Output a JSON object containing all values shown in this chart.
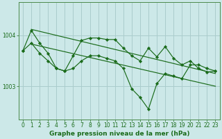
{
  "background_color": "#cce8e8",
  "plot_bg_color": "#cce8e8",
  "grid_color": "#aacccc",
  "line_color": "#1a6b1a",
  "marker_color": "#1a6b1a",
  "xlabel": "Graphe pression niveau de la mer (hPa)",
  "xlabel_fontsize": 6.5,
  "xlim": [
    -0.5,
    23.5
  ],
  "ylim": [
    1002.35,
    1004.65
  ],
  "yticks": [
    1003,
    1004
  ],
  "xticks": [
    0,
    1,
    2,
    3,
    4,
    5,
    6,
    7,
    8,
    9,
    10,
    11,
    12,
    13,
    14,
    15,
    16,
    17,
    18,
    19,
    20,
    21,
    22,
    23
  ],
  "series_deep_x": [
    0,
    1,
    2,
    3,
    4,
    5,
    6,
    7,
    8,
    9,
    10,
    11,
    12,
    13,
    14,
    15,
    16,
    17,
    18,
    19,
    20,
    21,
    22,
    23
  ],
  "series_deep_y": [
    1003.7,
    1003.85,
    1003.65,
    1003.5,
    1003.35,
    1003.3,
    1003.35,
    1003.5,
    1003.6,
    1003.6,
    1003.55,
    1003.5,
    1003.35,
    1002.95,
    1002.78,
    1002.55,
    1003.05,
    1003.25,
    1003.2,
    1003.15,
    1003.42,
    1003.42,
    1003.35,
    1003.3
  ],
  "series_upper_x": [
    0,
    1,
    2,
    3,
    4,
    5,
    6,
    7,
    8,
    9,
    10,
    11,
    12,
    13,
    14,
    15,
    16,
    17,
    18,
    19,
    20,
    21,
    22,
    23
  ],
  "series_upper_y": [
    1003.7,
    1004.1,
    1003.85,
    1003.65,
    1003.35,
    1003.3,
    1003.6,
    1003.9,
    1003.95,
    1003.95,
    1003.92,
    1003.92,
    1003.75,
    1003.6,
    1003.5,
    1003.75,
    1003.58,
    1003.78,
    1003.55,
    1003.42,
    1003.5,
    1003.35,
    1003.28,
    1003.3
  ],
  "trend1_x": [
    1,
    23
  ],
  "trend1_y": [
    1004.12,
    1003.25
  ],
  "trend2_x": [
    1,
    23
  ],
  "trend2_y": [
    1003.83,
    1003.0
  ],
  "tick_fontsize": 5.5,
  "linewidth": 0.85,
  "markersize": 2.2
}
